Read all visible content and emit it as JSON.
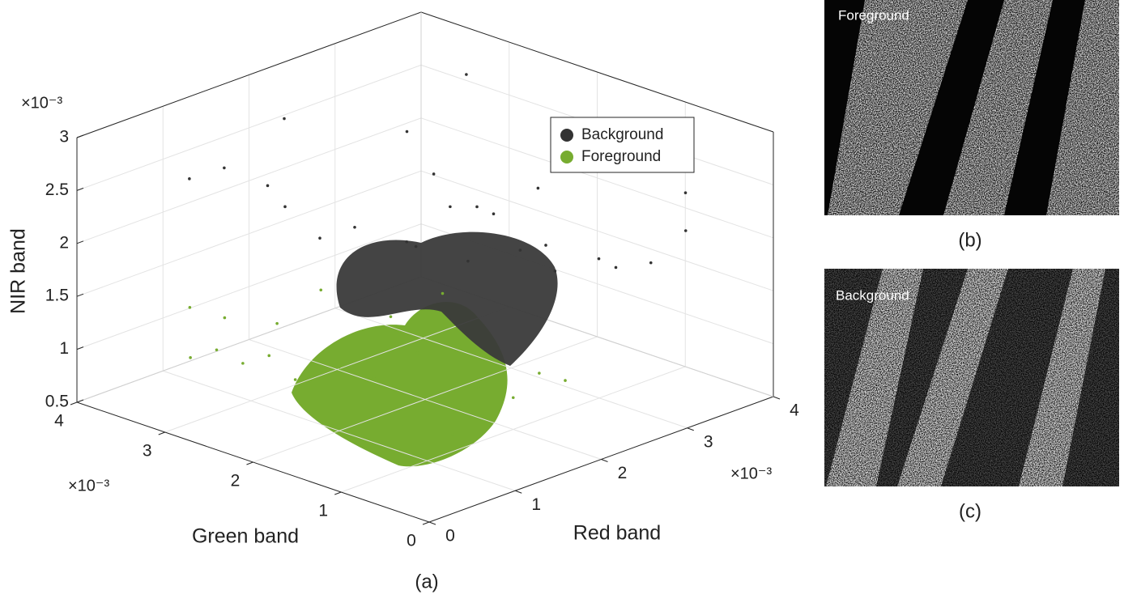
{
  "chart_data": {
    "type": "scatter3d",
    "xlabel": "Red band",
    "ylabel": "Green band",
    "zlabel": "NIR band",
    "xmultiplier": "×10⁻³",
    "ymultiplier": "×10⁻³",
    "zmultiplier": "×10⁻³",
    "xlim": [
      0,
      4
    ],
    "ylim": [
      0,
      4
    ],
    "zlim": [
      0.5,
      3
    ],
    "xticks": [
      0,
      1,
      2,
      3,
      4
    ],
    "yticks": [
      0,
      1,
      2,
      3,
      4
    ],
    "zticks": [
      0.5,
      1,
      1.5,
      2,
      2.5,
      3
    ],
    "grid": true,
    "legend": "upper right",
    "caption": "(a)",
    "series": [
      {
        "name": "Background",
        "color": "#333333",
        "x": [
          2.6,
          2.9,
          3.1,
          2.2,
          2.4,
          3.3,
          2.0,
          1.8,
          2.7,
          3.5,
          3.0,
          2.5,
          1.6,
          3.2,
          2.8,
          2.1,
          3.6,
          1.5,
          3.8,
          2.3,
          1.2,
          3.9,
          2.0,
          1.0,
          3.4
        ],
        "y": [
          2.1,
          1.8,
          1.6,
          2.3,
          2.6,
          1.9,
          2.8,
          3.0,
          2.4,
          1.3,
          2.2,
          1.9,
          3.2,
          1.2,
          1.5,
          2.0,
          1.0,
          3.3,
          0.8,
          2.5,
          3.5,
          0.9,
          3.6,
          3.7,
          2.9
        ],
        "z": [
          1.6,
          1.7,
          1.5,
          1.8,
          1.7,
          1.6,
          1.9,
          1.8,
          2.0,
          1.5,
          1.9,
          2.2,
          2.1,
          1.7,
          2.4,
          2.6,
          1.6,
          2.3,
          1.9,
          2.8,
          2.5,
          2.2,
          2.7,
          2.4,
          2.9
        ]
      },
      {
        "name": "Foreground",
        "color": "#77ac30",
        "x": [
          1.4,
          1.6,
          1.2,
          1.8,
          1.0,
          1.5,
          2.0,
          1.3,
          0.9,
          1.7,
          1.1,
          2.2,
          0.8,
          1.9,
          1.4,
          0.7,
          2.4,
          1.2,
          0.6,
          1.6,
          0.5,
          1.0,
          2.1,
          0.8,
          1.3
        ],
        "y": [
          1.5,
          1.3,
          1.8,
          1.2,
          2.0,
          1.6,
          1.0,
          2.2,
          2.4,
          1.7,
          1.4,
          0.9,
          2.6,
          1.5,
          1.1,
          2.8,
          0.8,
          2.9,
          3.0,
          2.0,
          3.2,
          3.3,
          1.9,
          3.5,
          2.5
        ],
        "z": [
          0.9,
          0.8,
          1.0,
          0.9,
          1.1,
          1.2,
          0.8,
          1.0,
          0.9,
          1.3,
          0.7,
          1.0,
          1.1,
          1.2,
          0.6,
          1.0,
          0.9,
          1.2,
          1.1,
          1.4,
          1.0,
          1.2,
          1.5,
          1.3,
          1.6
        ]
      }
    ]
  },
  "panels": [
    {
      "label": "Foreground",
      "caption": "(b)"
    },
    {
      "label": "Background",
      "caption": "(c)"
    }
  ]
}
